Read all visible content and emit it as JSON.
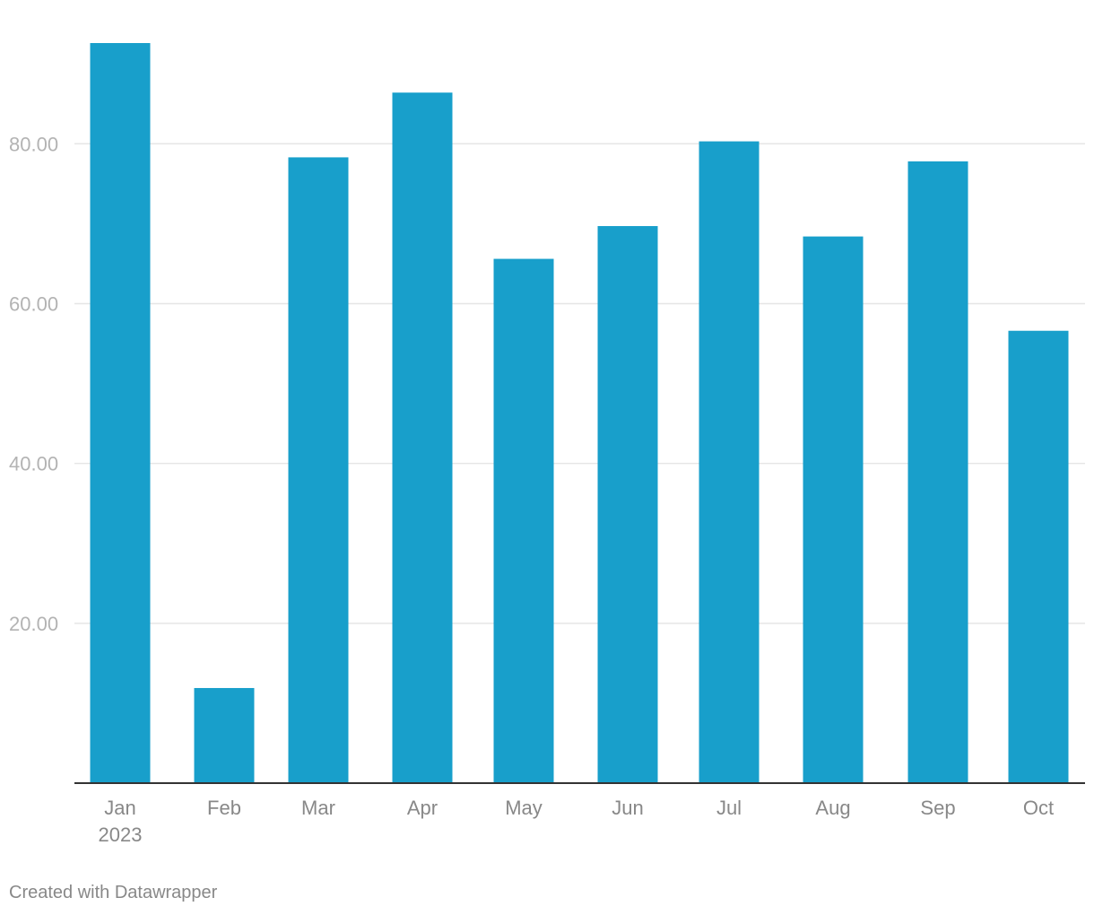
{
  "chart_data": {
    "type": "bar",
    "categories": [
      "Jan",
      "Feb",
      "Mar",
      "Apr",
      "May",
      "Jun",
      "Jul",
      "Aug",
      "Sep",
      "Oct"
    ],
    "category_sublabels": [
      "2023",
      "",
      "",
      "",
      "",
      "",
      "",
      "",
      "",
      ""
    ],
    "values": [
      92.6,
      11.9,
      78.3,
      86.4,
      65.6,
      69.7,
      80.3,
      68.4,
      77.8,
      56.6
    ],
    "yticks": [
      20,
      40,
      60,
      80
    ],
    "ytick_labels": [
      "20.00",
      "40.00",
      "60.00",
      "80.00"
    ],
    "ylim": [
      0,
      92.6
    ],
    "grid": true,
    "bar_color": "#189fcb",
    "title": "",
    "xlabel": "",
    "ylabel": ""
  },
  "footer": {
    "credit": "Created with Datawrapper"
  }
}
